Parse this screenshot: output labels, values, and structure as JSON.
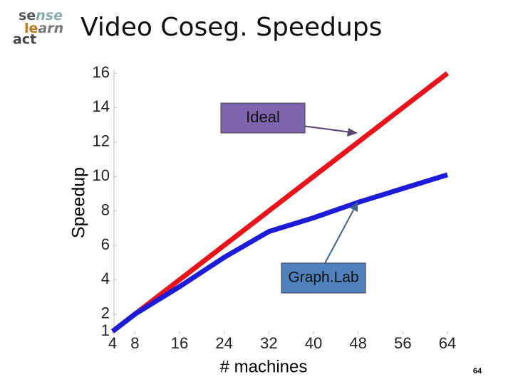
{
  "logo": [
    "se",
    "nse",
    "le",
    "arn",
    "act"
  ],
  "page_number": "64",
  "chart_data": {
    "type": "line",
    "title": "Video Coseg. Speedups",
    "x_label": "# machines",
    "y_label": "Speedup",
    "x": [
      4,
      8,
      16,
      24,
      32,
      40,
      48,
      56,
      64
    ],
    "series": [
      {
        "name": "Ideal",
        "color": "#e8141b",
        "values": [
          1,
          2,
          4,
          6,
          8,
          10,
          12,
          14,
          16
        ]
      },
      {
        "name": "Graph.Lab",
        "color": "#1c1cd8",
        "values": [
          1,
          2,
          3.6,
          5.3,
          6.8,
          7.6,
          8.5,
          9.3,
          10.1
        ]
      }
    ],
    "annotations": [
      {
        "text": "Ideal"
      },
      {
        "text": "Graph.Lab"
      }
    ],
    "xlim": [
      4,
      64
    ],
    "xticks": [
      4,
      8,
      16,
      24,
      32,
      40,
      48,
      56,
      64
    ],
    "ylim": [
      1,
      16
    ],
    "yticks": [
      1,
      2,
      4,
      6,
      8,
      10,
      12,
      14,
      16
    ],
    "grid": false
  }
}
